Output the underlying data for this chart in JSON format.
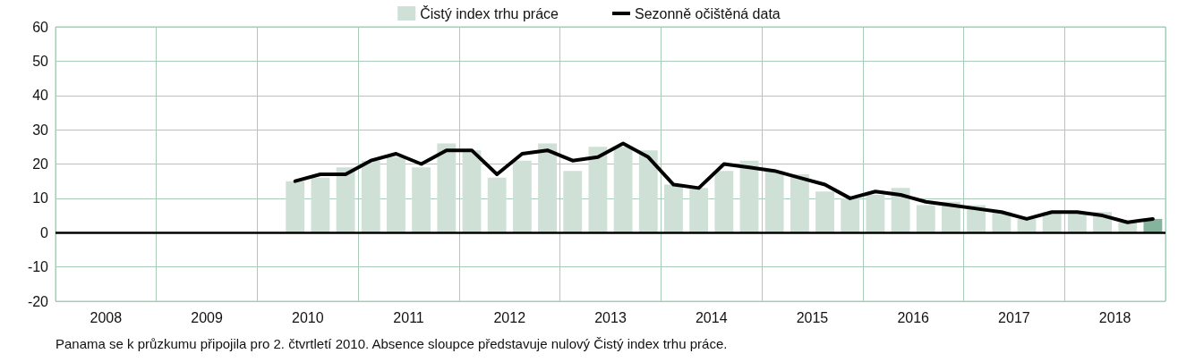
{
  "chart_data": {
    "type": "bar",
    "x": [
      2010.375,
      2010.625,
      2010.875,
      2011.125,
      2011.375,
      2011.625,
      2011.875,
      2012.125,
      2012.375,
      2012.625,
      2012.875,
      2013.125,
      2013.375,
      2013.625,
      2013.875,
      2014.125,
      2014.375,
      2014.625,
      2014.875,
      2015.125,
      2015.375,
      2015.625,
      2015.875,
      2016.125,
      2016.375,
      2016.625,
      2016.875,
      2017.125,
      2017.375,
      2017.625,
      2017.875,
      2018.125,
      2018.375,
      2018.625,
      2018.875
    ],
    "series": [
      {
        "name": "Čistý index trhu práce",
        "color": "#cfe0d6",
        "colors": [
          "#cfe0d6",
          "#cfe0d6",
          "#cfe0d6",
          "#cfe0d6",
          "#cfe0d6",
          "#cfe0d6",
          "#cfe0d6",
          "#cfe0d6",
          "#cfe0d6",
          "#cfe0d6",
          "#cfe0d6",
          "#cfe0d6",
          "#cfe0d6",
          "#cfe0d6",
          "#cfe0d6",
          "#cfe0d6",
          "#cfe0d6",
          "#cfe0d6",
          "#cfe0d6",
          "#cfe0d6",
          "#cfe0d6",
          "#cfe0d6",
          "#cfe0d6",
          "#cfe0d6",
          "#cfe0d6",
          "#cfe0d6",
          "#cfe0d6",
          "#cfe0d6",
          "#cfe0d6",
          "#cfe0d6",
          "#cfe0d6",
          "#cfe0d6",
          "#cfe0d6",
          "#cfe0d6",
          "#86b39b"
        ],
        "values": [
          15,
          16,
          19,
          21,
          22,
          19,
          26,
          24,
          16,
          21,
          26,
          18,
          25,
          25,
          24,
          14,
          13,
          18,
          21,
          18,
          17,
          12,
          10,
          11,
          13,
          8,
          9,
          8,
          6,
          4,
          6,
          6,
          6,
          3,
          4
        ]
      },
      {
        "name": "Sezonně očištěná data",
        "type": "line",
        "color": "#000000",
        "values": [
          15,
          17,
          17,
          21,
          23,
          20,
          24,
          24,
          17,
          23,
          24,
          21,
          22,
          26,
          22,
          14,
          13,
          20,
          19,
          18,
          16,
          14,
          10,
          12,
          11,
          9,
          8,
          7,
          6,
          4,
          6,
          6,
          5,
          3,
          4
        ]
      }
    ],
    "xlim": [
      2008,
      2019
    ],
    "xticks": [
      {
        "value": 2008,
        "label": null
      },
      {
        "value": 2008.5,
        "label": "2008"
      },
      {
        "value": 2009,
        "label": null
      },
      {
        "value": 2009.5,
        "label": "2009"
      },
      {
        "value": 2010,
        "label": null
      },
      {
        "value": 2010.5,
        "label": "2010"
      },
      {
        "value": 2011,
        "label": null
      },
      {
        "value": 2011.5,
        "label": "2011"
      },
      {
        "value": 2012,
        "label": null
      },
      {
        "value": 2012.5,
        "label": "2012"
      },
      {
        "value": 2013,
        "label": null
      },
      {
        "value": 2013.5,
        "label": "2013"
      },
      {
        "value": 2014,
        "label": null
      },
      {
        "value": 2014.5,
        "label": "2014"
      },
      {
        "value": 2015,
        "label": null
      },
      {
        "value": 2015.5,
        "label": "2015"
      },
      {
        "value": 2016,
        "label": null
      },
      {
        "value": 2016.5,
        "label": "2016"
      },
      {
        "value": 2017,
        "label": null
      },
      {
        "value": 2017.5,
        "label": "2017"
      },
      {
        "value": 2018,
        "label": null
      },
      {
        "value": 2018.5,
        "label": "2018"
      },
      {
        "value": 2019,
        "label": null
      }
    ],
    "ylim": [
      -20,
      60
    ],
    "yticks": [
      -20,
      -10,
      0,
      10,
      20,
      30,
      40,
      50,
      60
    ],
    "grid": true,
    "legend": "top",
    "marker": "none",
    "line_style": "solid",
    "ref_lines": [
      {
        "axis": "y",
        "value": 0,
        "color": "#000000"
      }
    ],
    "annotations": [
      "Panama se k průzkumu připojila pro 2. čtvrtletí 2010. Absence sloupce představuje nulový Čistý index trhu práce."
    ]
  }
}
